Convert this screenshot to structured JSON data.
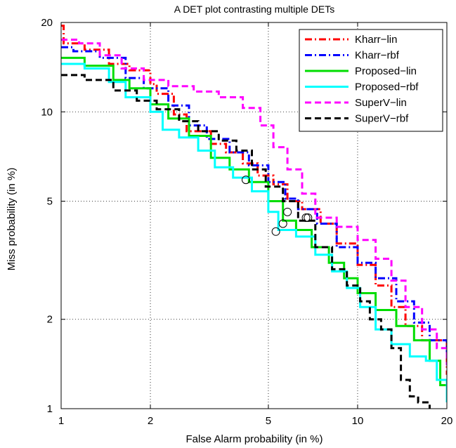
{
  "chart_data": {
    "type": "line",
    "title": "A DET plot contrasting multiple DETs",
    "xlabel": "False Alarm probability (in %)",
    "ylabel": "Miss probability (in %)",
    "xscale": "log",
    "yscale": "log",
    "xlim": [
      1,
      20
    ],
    "ylim": [
      1,
      20
    ],
    "xticks": [
      1,
      2,
      5,
      10,
      20
    ],
    "yticks": [
      1,
      2,
      5,
      10,
      20
    ],
    "xtick_labels": [
      "1",
      "2",
      "5",
      "10",
      "20"
    ],
    "ytick_labels": [
      "1",
      "2",
      "5",
      "10",
      "20"
    ],
    "grid": true,
    "legend_position": "top-right",
    "series": [
      {
        "name": "Kharr−lin",
        "color": "#ff0000",
        "dash": "dash-dot",
        "points": [
          [
            1.0,
            19.5
          ],
          [
            1.02,
            17.0
          ],
          [
            1.2,
            16.2
          ],
          [
            1.45,
            14.5
          ],
          [
            1.7,
            13.8
          ],
          [
            2.0,
            12.4
          ],
          [
            2.1,
            11.5
          ],
          [
            2.4,
            9.8
          ],
          [
            2.65,
            8.6
          ],
          [
            3.2,
            7.8
          ],
          [
            3.6,
            7.3
          ],
          [
            4.1,
            6.7
          ],
          [
            4.6,
            6.1
          ],
          [
            5.2,
            5.7
          ],
          [
            5.8,
            5.0
          ],
          [
            6.5,
            4.7
          ],
          [
            7.5,
            4.2
          ],
          [
            8.5,
            3.6
          ],
          [
            10.0,
            3.05
          ],
          [
            11.5,
            2.6
          ],
          [
            13.0,
            2.2
          ],
          [
            14.5,
            1.9
          ],
          [
            16.5,
            1.7
          ],
          [
            20.0,
            1.3
          ]
        ],
        "marker_point": [
          6.7,
          4.4
        ]
      },
      {
        "name": "Kharr−rbf",
        "color": "#0000ff",
        "dash": "dash-dot",
        "points": [
          [
            1.0,
            16.5
          ],
          [
            1.1,
            16.0
          ],
          [
            1.35,
            15.2
          ],
          [
            1.65,
            13.0
          ],
          [
            1.9,
            12.0
          ],
          [
            2.3,
            10.5
          ],
          [
            2.7,
            9.0
          ],
          [
            3.1,
            8.1
          ],
          [
            3.7,
            7.3
          ],
          [
            4.3,
            6.6
          ],
          [
            5.0,
            5.8
          ],
          [
            5.7,
            5.1
          ],
          [
            6.3,
            4.7
          ],
          [
            7.3,
            4.2
          ],
          [
            8.5,
            3.5
          ],
          [
            10.0,
            3.1
          ],
          [
            11.5,
            2.75
          ],
          [
            13.5,
            2.3
          ],
          [
            15.5,
            1.95
          ],
          [
            17.5,
            1.7
          ],
          [
            20.0,
            1.55
          ]
        ],
        "marker_point": [
          5.8,
          4.6
        ]
      },
      {
        "name": "Proposed−lin",
        "color": "#00dd00",
        "dash": "solid",
        "points": [
          [
            1.0,
            15.2
          ],
          [
            1.2,
            14.3
          ],
          [
            1.5,
            12.8
          ],
          [
            1.7,
            12.0
          ],
          [
            2.0,
            10.6
          ],
          [
            2.3,
            9.5
          ],
          [
            2.7,
            8.3
          ],
          [
            3.2,
            7.0
          ],
          [
            3.7,
            6.4
          ],
          [
            4.3,
            5.8
          ],
          [
            5.0,
            5.0
          ],
          [
            5.6,
            4.3
          ],
          [
            6.2,
            4.0
          ],
          [
            7.0,
            3.5
          ],
          [
            8.0,
            3.1
          ],
          [
            9.0,
            2.75
          ],
          [
            10.0,
            2.45
          ],
          [
            11.5,
            2.15
          ],
          [
            13.5,
            1.9
          ],
          [
            15.5,
            1.7
          ],
          [
            17.5,
            1.45
          ],
          [
            19.0,
            1.2
          ],
          [
            20.0,
            1.05
          ]
        ],
        "marker_point": [
          5.6,
          4.2
        ]
      },
      {
        "name": "Proposed−rbf",
        "color": "#00ffff",
        "dash": "solid",
        "points": [
          [
            1.0,
            14.5
          ],
          [
            1.2,
            14.0
          ],
          [
            1.45,
            12.6
          ],
          [
            1.65,
            11.2
          ],
          [
            2.0,
            10.0
          ],
          [
            2.2,
            8.7
          ],
          [
            2.5,
            8.2
          ],
          [
            2.9,
            7.4
          ],
          [
            3.3,
            6.5
          ],
          [
            3.8,
            6.0
          ],
          [
            4.4,
            5.4
          ],
          [
            5.0,
            4.6
          ],
          [
            5.4,
            4.0
          ],
          [
            6.2,
            3.8
          ],
          [
            7.2,
            3.3
          ],
          [
            8.2,
            2.9
          ],
          [
            9.2,
            2.55
          ],
          [
            10.2,
            2.2
          ],
          [
            11.5,
            1.85
          ],
          [
            13.0,
            1.65
          ],
          [
            15.0,
            1.5
          ],
          [
            17.0,
            1.45
          ],
          [
            18.5,
            1.25
          ],
          [
            20.0,
            1.05
          ]
        ],
        "marker_point": [
          5.3,
          3.95
        ]
      },
      {
        "name": "SuperV−lin",
        "color": "#ff00ff",
        "dash": "dash",
        "points": [
          [
            1.0,
            17.5
          ],
          [
            1.15,
            17.0
          ],
          [
            1.35,
            15.5
          ],
          [
            1.6,
            14.0
          ],
          [
            1.9,
            12.8
          ],
          [
            2.3,
            12.2
          ],
          [
            2.8,
            11.7
          ],
          [
            3.4,
            11.2
          ],
          [
            4.1,
            10.3
          ],
          [
            4.7,
            9.0
          ],
          [
            5.2,
            7.6
          ],
          [
            5.8,
            6.4
          ],
          [
            6.5,
            5.3
          ],
          [
            7.2,
            4.4
          ],
          [
            8.5,
            4.1
          ],
          [
            10.0,
            3.7
          ],
          [
            11.5,
            3.2
          ],
          [
            13.0,
            2.7
          ],
          [
            14.5,
            2.2
          ],
          [
            16.5,
            1.85
          ],
          [
            18.5,
            1.6
          ],
          [
            20.0,
            1.4
          ]
        ],
        "marker_point": [
          6.8,
          4.4
        ]
      },
      {
        "name": "SuperV−rbf",
        "color": "#000000",
        "dash": "dash",
        "points": [
          [
            1.0,
            13.3
          ],
          [
            1.2,
            12.8
          ],
          [
            1.5,
            11.8
          ],
          [
            1.8,
            10.9
          ],
          [
            2.1,
            10.2
          ],
          [
            2.5,
            9.3
          ],
          [
            2.9,
            8.6
          ],
          [
            3.4,
            8.0
          ],
          [
            3.9,
            7.4
          ],
          [
            4.4,
            6.4
          ],
          [
            4.9,
            5.6
          ],
          [
            5.6,
            5.0
          ],
          [
            6.3,
            4.3
          ],
          [
            7.2,
            3.5
          ],
          [
            8.2,
            2.95
          ],
          [
            9.2,
            2.6
          ],
          [
            10.2,
            2.3
          ],
          [
            11.0,
            2.0
          ],
          [
            12.0,
            1.85
          ],
          [
            13.0,
            1.6
          ],
          [
            14.0,
            1.25
          ],
          [
            15.0,
            1.1
          ],
          [
            16.0,
            1.05
          ],
          [
            17.5,
            1.0
          ]
        ],
        "marker_point": [
          4.2,
          5.9
        ]
      }
    ]
  }
}
